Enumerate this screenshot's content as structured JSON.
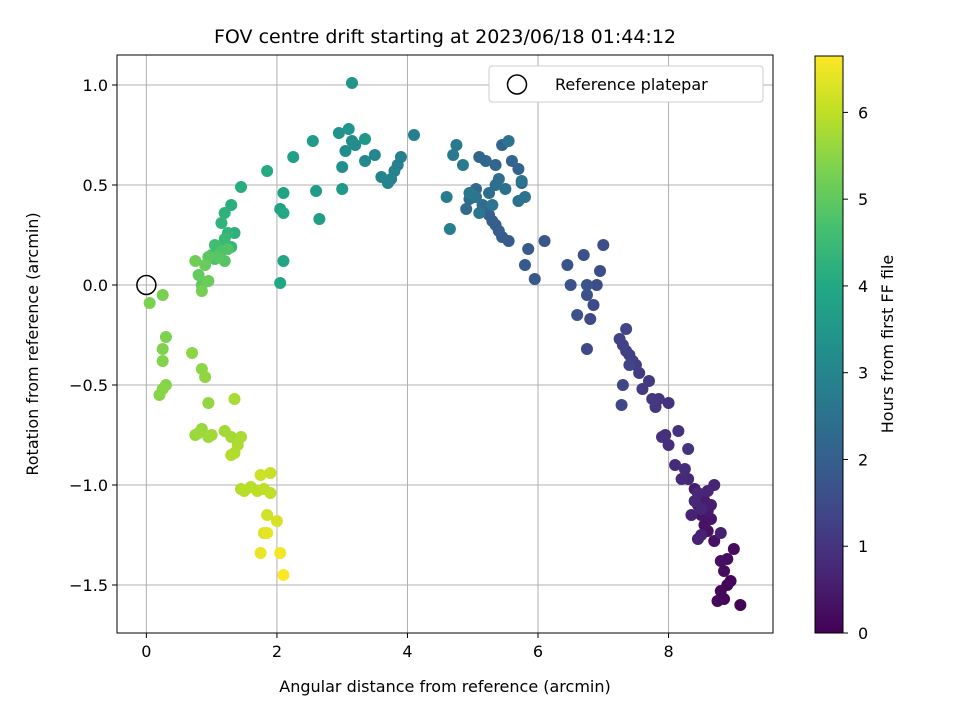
{
  "chart_data": {
    "type": "scatter",
    "title": "FOV centre drift starting at 2023/06/18 01:44:12",
    "xlabel": "Angular distance from reference (arcmin)",
    "ylabel": "Rotation from reference (arcmin)",
    "xlim": [
      -0.45,
      9.6
    ],
    "ylim": [
      -1.74,
      1.15
    ],
    "xticks": [
      0,
      2,
      4,
      6,
      8
    ],
    "yticks": [
      -1.5,
      -1.0,
      -0.5,
      0.0,
      0.5,
      1.0
    ],
    "xtick_labels": [
      "0",
      "2",
      "4",
      "6",
      "8"
    ],
    "ytick_labels": [
      "−1.5",
      "−1.0",
      "−0.5",
      "0.0",
      "0.5",
      "1.0"
    ],
    "grid": true,
    "colormap": "viridis",
    "colorbar": {
      "label": "Hours from first FF file",
      "min": 0,
      "max": 6.65,
      "ticks": [
        0,
        1,
        2,
        3,
        4,
        5,
        6
      ],
      "tick_labels": [
        "0",
        "1",
        "2",
        "3",
        "4",
        "5",
        "6"
      ]
    },
    "legend": {
      "position": "top-right",
      "entries": [
        "Reference platepar"
      ]
    },
    "reference_point": {
      "x": 0,
      "y": 0
    },
    "series": [
      {
        "x": [
          9.1,
          8.9,
          8.85,
          8.95,
          8.8,
          8.75,
          9.0,
          8.85,
          8.9,
          8.8,
          8.7,
          8.6,
          8.55,
          8.65,
          8.5,
          8.45,
          8.6,
          8.5,
          8.4,
          8.55,
          8.65,
          8.8,
          8.5,
          8.45,
          8.35,
          8.7,
          8.6,
          8.5,
          8.45,
          8.3,
          8.4
        ],
        "y": [
          -1.6,
          -1.5,
          -1.57,
          -1.48,
          -1.53,
          -1.58,
          -1.32,
          -1.43,
          -1.37,
          -1.38,
          -1.28,
          -1.23,
          -1.2,
          -1.17,
          -1.15,
          -1.1,
          -1.13,
          -1.05,
          -1.02,
          -1.08,
          -1.1,
          -1.24,
          -1.25,
          -1.27,
          -1.15,
          -1.0,
          -1.03,
          -1.12,
          -1.04,
          -0.97,
          -1.08
        ],
        "t": [
          0.05,
          0.08,
          0.1,
          0.12,
          0.15,
          0.17,
          0.2,
          0.22,
          0.25,
          0.28,
          0.3,
          0.33,
          0.35,
          0.38,
          0.4,
          0.42,
          0.45,
          0.48,
          0.5,
          0.52,
          0.55,
          0.58,
          0.6,
          0.62,
          0.64,
          0.66,
          0.68,
          0.7,
          0.72,
          0.74,
          0.76
        ]
      },
      {
        "x": [
          8.2,
          8.1,
          8.25,
          8.0,
          7.9,
          7.95,
          8.15,
          8.3,
          8.0,
          7.85,
          7.8,
          7.75,
          7.7,
          7.6,
          7.55,
          7.5,
          7.45,
          7.4,
          7.35,
          7.3,
          7.25,
          7.35,
          7.4,
          7.3,
          7.28,
          6.75,
          6.8,
          6.85,
          6.9,
          6.95,
          7.0,
          6.7,
          6.75,
          6.6,
          6.5,
          6.45,
          6.75
        ],
        "y": [
          -0.97,
          -0.9,
          -0.92,
          -0.8,
          -0.76,
          -0.75,
          -0.73,
          -0.82,
          -0.59,
          -0.57,
          -0.61,
          -0.57,
          -0.48,
          -0.52,
          -0.44,
          -0.4,
          -0.38,
          -0.35,
          -0.33,
          -0.3,
          -0.27,
          -0.22,
          -0.4,
          -0.5,
          -0.6,
          -0.32,
          -0.17,
          -0.1,
          0.0,
          0.07,
          0.2,
          0.15,
          -0.05,
          -0.15,
          0.0,
          0.1,
          0.0
        ],
        "t": [
          0.8,
          0.82,
          0.85,
          0.88,
          0.9,
          0.92,
          0.95,
          0.98,
          1.0,
          1.02,
          1.05,
          1.08,
          1.1,
          1.12,
          1.15,
          1.18,
          1.2,
          1.22,
          1.25,
          1.28,
          1.3,
          1.32,
          1.35,
          1.38,
          1.4,
          1.45,
          1.48,
          1.5,
          1.55,
          1.58,
          1.6,
          1.62,
          1.65,
          1.68,
          1.7,
          1.72,
          1.75
        ]
      },
      {
        "x": [
          6.1,
          5.95,
          5.85,
          5.8,
          5.55,
          5.45,
          5.4,
          5.35,
          5.3,
          5.25,
          5.2,
          5.75,
          5.7,
          5.6,
          5.45,
          5.35,
          5.2,
          5.1,
          5.05,
          5.0,
          4.95,
          4.9,
          5.15,
          5.25,
          5.35,
          5.4,
          5.5,
          5.7,
          5.8,
          5.75,
          5.55,
          5.3,
          5.1,
          5.05,
          4.95,
          4.85,
          4.75,
          4.7,
          4.6,
          4.65
        ],
        "y": [
          0.22,
          0.03,
          0.18,
          0.1,
          0.22,
          0.24,
          0.27,
          0.3,
          0.32,
          0.35,
          0.38,
          0.51,
          0.58,
          0.62,
          0.7,
          0.6,
          0.62,
          0.64,
          0.48,
          0.44,
          0.43,
          0.38,
          0.4,
          0.46,
          0.5,
          0.53,
          0.48,
          0.42,
          0.44,
          0.52,
          0.72,
          0.4,
          0.36,
          0.44,
          0.46,
          0.6,
          0.7,
          0.65,
          0.44,
          0.28
        ],
        "t": [
          1.8,
          1.82,
          1.85,
          1.88,
          1.9,
          1.93,
          1.95,
          1.98,
          2.0,
          2.02,
          2.05,
          2.08,
          2.1,
          2.12,
          2.15,
          2.18,
          2.2,
          2.22,
          2.25,
          2.28,
          2.3,
          2.32,
          2.35,
          2.38,
          2.4,
          2.42,
          2.45,
          2.48,
          2.5,
          2.52,
          2.55,
          2.58,
          2.6,
          2.62,
          2.65,
          2.68,
          2.7,
          2.72,
          2.75,
          2.78
        ]
      },
      {
        "x": [
          4.1,
          3.9,
          3.85,
          3.8,
          3.75,
          3.7,
          3.6,
          3.5,
          3.35,
          3.2,
          3.15,
          3.05,
          3.0,
          2.95,
          3.1,
          3.15,
          3.35,
          3.0,
          2.55,
          2.6,
          2.65,
          2.25,
          2.05,
          2.1,
          2.1,
          2.05
        ],
        "y": [
          0.75,
          0.64,
          0.6,
          0.57,
          0.53,
          0.51,
          0.54,
          0.65,
          0.62,
          0.7,
          0.72,
          0.67,
          0.59,
          0.76,
          0.78,
          1.01,
          0.73,
          0.48,
          0.72,
          0.47,
          0.33,
          0.64,
          0.38,
          0.46,
          0.12,
          0.01
        ],
        "t": [
          2.85,
          2.88,
          2.9,
          2.93,
          2.95,
          2.98,
          3.0,
          3.05,
          3.1,
          3.15,
          3.2,
          3.25,
          3.3,
          3.35,
          3.4,
          3.45,
          3.5,
          3.55,
          3.6,
          3.65,
          3.7,
          3.75,
          3.8,
          3.85,
          3.9,
          3.95
        ]
      },
      {
        "x": [
          2.1,
          1.85,
          1.45,
          1.3,
          1.35,
          1.2,
          1.15,
          1.25,
          1.3,
          1.2,
          1.15,
          1.1,
          1.05,
          1.0,
          1.05,
          1.15,
          1.25,
          1.2,
          1.1,
          0.95,
          0.85,
          0.8,
          0.9,
          0.95,
          0.75,
          0.85
        ],
        "y": [
          0.36,
          0.57,
          0.49,
          0.4,
          0.26,
          0.36,
          0.31,
          0.26,
          0.19,
          0.23,
          0.19,
          0.16,
          0.2,
          0.15,
          0.13,
          0.17,
          0.18,
          0.12,
          0.14,
          0.14,
          0.0,
          0.05,
          0.1,
          0.02,
          0.12,
          -0.03
        ],
        "t": [
          4.0,
          4.05,
          4.1,
          4.15,
          4.2,
          4.25,
          4.3,
          4.35,
          4.4,
          4.45,
          4.5,
          4.55,
          4.6,
          4.65,
          4.7,
          4.75,
          4.8,
          4.85,
          4.9,
          4.95,
          5.0,
          5.05,
          5.1,
          5.15,
          5.2,
          5.25
        ]
      },
      {
        "x": [
          0.25,
          0.05,
          0.3,
          0.25,
          0.25,
          0.3,
          0.2,
          0.25,
          0.7,
          0.85,
          0.9,
          0.95,
          0.85,
          0.75,
          0.8,
          0.95,
          1.0,
          1.2,
          1.3,
          1.35,
          1.45,
          1.4,
          1.35,
          1.3,
          1.45,
          1.6,
          1.5,
          1.7,
          1.8,
          1.9
        ],
        "y": [
          -0.05,
          -0.09,
          -0.26,
          -0.32,
          -0.38,
          -0.5,
          -0.55,
          -0.52,
          -0.34,
          -0.42,
          -0.46,
          -0.59,
          -0.72,
          -0.75,
          -0.74,
          -0.76,
          -0.75,
          -0.73,
          -0.76,
          -0.57,
          -0.76,
          -0.8,
          -0.84,
          -0.85,
          -1.02,
          -1.01,
          -1.03,
          -1.03,
          -1.02,
          -1.04
        ],
        "t": [
          5.3,
          5.32,
          5.35,
          5.38,
          5.4,
          5.42,
          5.45,
          5.48,
          5.5,
          5.52,
          5.55,
          5.58,
          5.6,
          5.62,
          5.65,
          5.68,
          5.7,
          5.72,
          5.75,
          5.78,
          5.8,
          5.82,
          5.85,
          5.88,
          5.9,
          5.92,
          5.95,
          5.98,
          6.0,
          6.02
        ]
      },
      {
        "x": [
          1.9,
          1.75,
          1.85,
          2.0,
          1.8,
          1.85,
          1.75,
          2.05,
          2.1
        ],
        "y": [
          -0.94,
          -0.95,
          -1.15,
          -1.18,
          -1.24,
          -1.24,
          -1.34,
          -1.34,
          -1.45
        ],
        "t": [
          6.1,
          6.15,
          6.2,
          6.25,
          6.3,
          6.4,
          6.45,
          6.55,
          6.65
        ]
      }
    ]
  }
}
